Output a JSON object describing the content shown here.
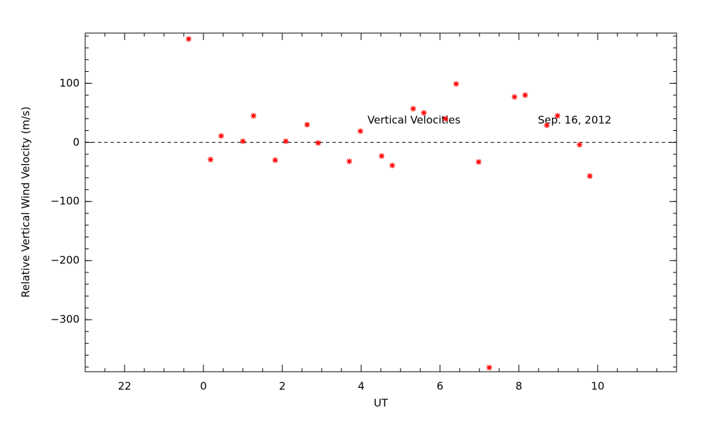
{
  "chart_data": {
    "type": "scatter",
    "annotations": [
      "Vertical Velocities",
      "Sep. 16, 2012"
    ],
    "xlabel": "UT",
    "ylabel": "Relative Vertical Wind Velocity (m/s)",
    "x": [
      -0.375,
      0.18,
      0.45,
      1.0,
      1.27,
      1.82,
      2.09,
      2.63,
      2.91,
      3.7,
      3.98,
      4.52,
      4.79,
      5.32,
      5.59,
      6.14,
      6.41,
      6.98,
      7.25,
      7.89,
      8.16,
      8.71,
      8.98,
      9.54,
      9.8
    ],
    "values": [
      175,
      -29,
      11,
      2,
      45,
      -30,
      2,
      30,
      -1,
      -32,
      19,
      -23,
      -39,
      57,
      50,
      40,
      99,
      -33,
      -381,
      77,
      80,
      29,
      45,
      -4,
      -57
    ],
    "color": "#ff0000",
    "xlim": [
      -3,
      12
    ],
    "ylim": [
      -388,
      185
    ],
    "xticks": [
      {
        "value": -2,
        "label": "22"
      },
      0,
      2,
      4,
      6,
      8,
      10
    ],
    "yticks": [
      {
        "value": -300,
        "label": "−300"
      },
      {
        "value": -200,
        "label": "−200"
      },
      {
        "value": -100,
        "label": "−100"
      },
      0,
      100
    ],
    "reference_line": 0
  }
}
